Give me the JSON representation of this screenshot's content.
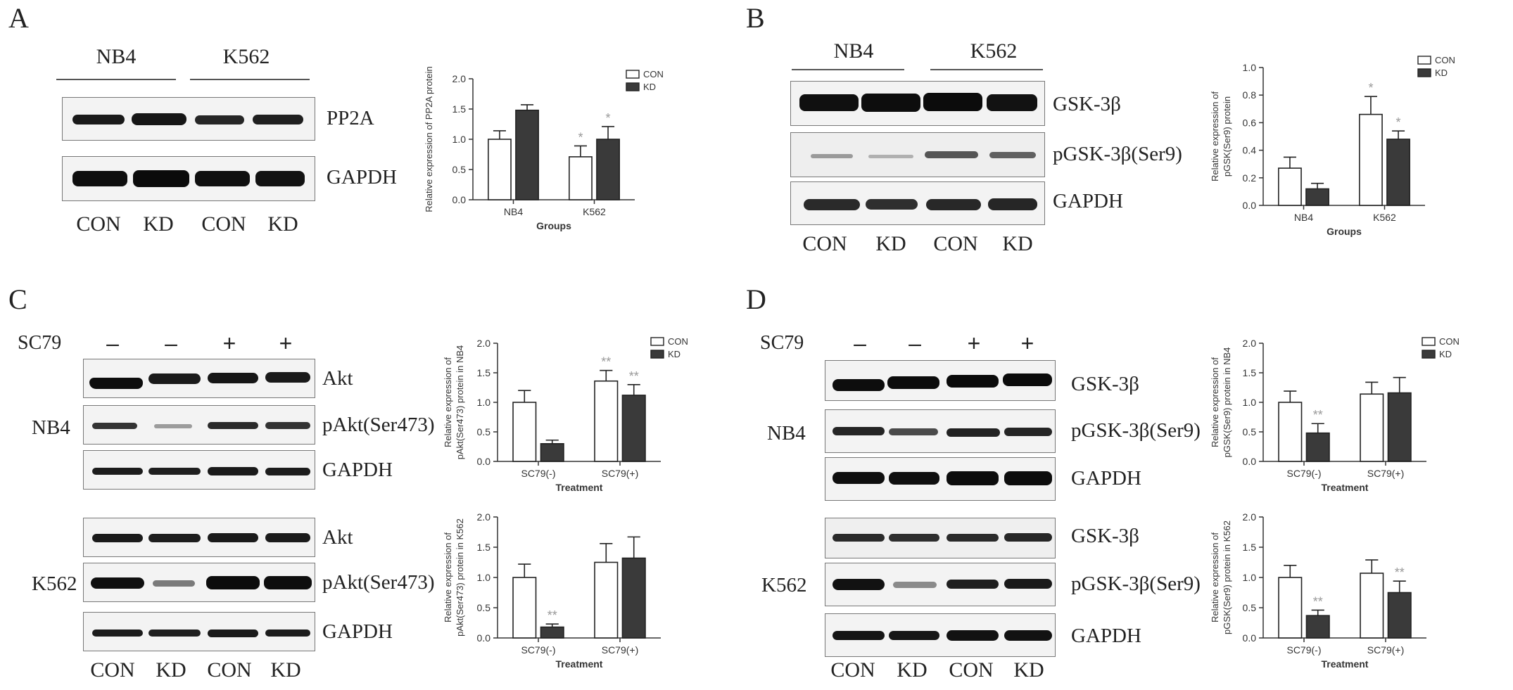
{
  "panels": {
    "A": {
      "label": "A",
      "groups": [
        "NB4",
        "K562"
      ],
      "lanes": [
        "CON",
        "KD",
        "CON",
        "KD"
      ],
      "bands": [
        "PP2A",
        "GAPDH"
      ]
    },
    "B": {
      "label": "B",
      "groups": [
        "NB4",
        "K562"
      ],
      "lanes": [
        "CON",
        "KD",
        "CON",
        "KD"
      ],
      "bands": [
        "GSK-3β",
        "pGSK-3β(Ser9)",
        "GAPDH"
      ]
    },
    "C": {
      "label": "C",
      "sc79_label": "SC79",
      "signs": [
        "–",
        "–",
        "+",
        "+"
      ],
      "cell_lines": [
        "NB4",
        "K562"
      ],
      "bands_nb4": [
        "Akt",
        "pAkt(Ser473)",
        "GAPDH"
      ],
      "bands_k562": [
        "Akt",
        "pAkt(Ser473)",
        "GAPDH"
      ],
      "lanes": [
        "CON",
        "KD",
        "CON",
        "KD"
      ]
    },
    "D": {
      "label": "D",
      "sc79_label": "SC79",
      "signs": [
        "–",
        "–",
        "+",
        "+"
      ],
      "cell_lines": [
        "NB4",
        "K562"
      ],
      "bands_nb4": [
        "GSK-3β",
        "pGSK-3β(Ser9)",
        "GAPDH"
      ],
      "bands_k562": [
        "GSK-3β",
        "pGSK-3β(Ser9)",
        "GAPDH"
      ],
      "lanes": [
        "CON",
        "KD",
        "CON",
        "KD"
      ]
    }
  },
  "colors": {
    "con": "#ffffff",
    "kd": "#3a3a3a",
    "axis": "#333333",
    "star": "#999999"
  },
  "chart_data": [
    {
      "id": "A",
      "type": "bar",
      "categories": [
        "NB4",
        "K562"
      ],
      "series": [
        {
          "name": "CON",
          "values": [
            1.0,
            0.71
          ],
          "errors": [
            0.14,
            0.18
          ]
        },
        {
          "name": "KD",
          "values": [
            1.48,
            1.0
          ],
          "errors": [
            0.09,
            0.21
          ]
        }
      ],
      "significance": [
        [
          "",
          "*"
        ],
        [
          "",
          "*"
        ]
      ],
      "xlabel": "Groups",
      "ylabel": "Relative expression of PP2A protein",
      "ylim": [
        0,
        2.0
      ],
      "yticks": [
        "0.0",
        "0.5",
        "1.0",
        "1.5",
        "2.0"
      ],
      "legend": "top-right"
    },
    {
      "id": "B",
      "type": "bar",
      "categories": [
        "NB4",
        "K562"
      ],
      "series": [
        {
          "name": "CON",
          "values": [
            0.27,
            0.66
          ],
          "errors": [
            0.08,
            0.13
          ]
        },
        {
          "name": "KD",
          "values": [
            0.12,
            0.48
          ],
          "errors": [
            0.04,
            0.06
          ]
        }
      ],
      "significance": [
        [
          "",
          "*"
        ],
        [
          "",
          "*"
        ]
      ],
      "xlabel": "Groups",
      "ylabel": "Relative expression of pGSK(Ser9) protein",
      "ylim": [
        0,
        1.0
      ],
      "yticks": [
        "0.0",
        "0.2",
        "0.4",
        "0.6",
        "0.8",
        "1.0"
      ],
      "legend": "top-right"
    },
    {
      "id": "C1",
      "type": "bar",
      "categories": [
        "SC79(-)",
        "SC79(+)"
      ],
      "series": [
        {
          "name": "CON",
          "values": [
            1.0,
            1.36
          ],
          "errors": [
            0.2,
            0.18
          ]
        },
        {
          "name": "KD",
          "values": [
            0.3,
            1.12
          ],
          "errors": [
            0.06,
            0.18
          ]
        }
      ],
      "significance": [
        [
          "",
          "**"
        ],
        [
          "",
          "**"
        ]
      ],
      "xlabel": "Treatment",
      "ylabel": "Relative expression of pAkt(Ser473) protein in NB4",
      "ylim": [
        0,
        2.0
      ],
      "yticks": [
        "0.0",
        "0.5",
        "1.0",
        "1.5",
        "2.0"
      ],
      "legend": "top-right"
    },
    {
      "id": "C2",
      "type": "bar",
      "categories": [
        "SC79(-)",
        "SC79(+)"
      ],
      "series": [
        {
          "name": "CON",
          "values": [
            1.0,
            1.25
          ],
          "errors": [
            0.22,
            0.31
          ]
        },
        {
          "name": "KD",
          "values": [
            0.18,
            1.32
          ],
          "errors": [
            0.05,
            0.35
          ]
        }
      ],
      "significance": [
        [
          "",
          ""
        ],
        [
          "**",
          ""
        ]
      ],
      "xlabel": "Treatment",
      "ylabel": "Relative expression of pAkt(Ser473) protein in K562",
      "ylim": [
        0,
        2.0
      ],
      "yticks": [
        "0.0",
        "0.5",
        "1.0",
        "1.5",
        "2.0"
      ],
      "legend": ""
    },
    {
      "id": "D1",
      "type": "bar",
      "categories": [
        "SC79(-)",
        "SC79(+)"
      ],
      "series": [
        {
          "name": "CON",
          "values": [
            1.0,
            1.14
          ],
          "errors": [
            0.19,
            0.2
          ]
        },
        {
          "name": "KD",
          "values": [
            0.48,
            1.16
          ],
          "errors": [
            0.16,
            0.26
          ]
        }
      ],
      "significance": [
        [
          "",
          ""
        ],
        [
          "**",
          ""
        ]
      ],
      "xlabel": "Treatment",
      "ylabel": "Relative expression of pGSK(Ser9) protein in NB4",
      "ylim": [
        0,
        2.0
      ],
      "yticks": [
        "0.0",
        "0.5",
        "1.0",
        "1.5",
        "2.0"
      ],
      "legend": "top-right"
    },
    {
      "id": "D2",
      "type": "bar",
      "categories": [
        "SC79(-)",
        "SC79(+)"
      ],
      "series": [
        {
          "name": "CON",
          "values": [
            1.0,
            1.07
          ],
          "errors": [
            0.2,
            0.22
          ]
        },
        {
          "name": "KD",
          "values": [
            0.37,
            0.75
          ],
          "errors": [
            0.09,
            0.19
          ]
        }
      ],
      "significance": [
        [
          "",
          ""
        ],
        [
          "**",
          "**"
        ]
      ],
      "xlabel": "Treatment",
      "ylabel": "Relative expression of pGSK(Ser9) protein in K562",
      "ylim": [
        0,
        2.0
      ],
      "yticks": [
        "0.0",
        "0.5",
        "1.0",
        "1.5",
        "2.0"
      ],
      "legend": ""
    }
  ]
}
